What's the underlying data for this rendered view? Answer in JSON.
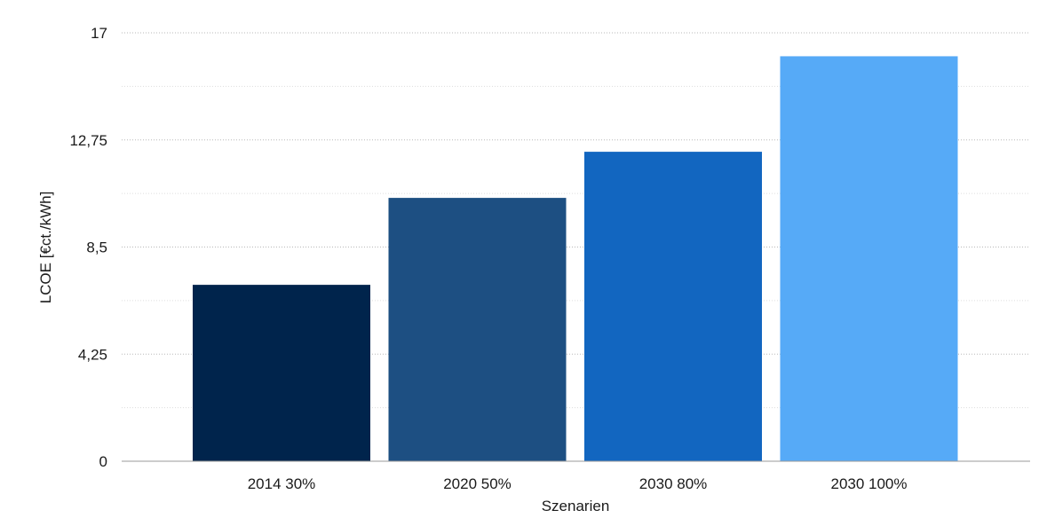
{
  "chart_data": {
    "type": "bar",
    "title": "",
    "xlabel": "Szenarien",
    "ylabel": "LCOE [€ct./kWh]",
    "categories": [
      "2014 30%",
      "2020 50%",
      "2030 80%",
      "2030 100%"
    ],
    "values": [
      7.0,
      10.45,
      12.28,
      16.07
    ],
    "colors": [
      "#00244c",
      "#1d4f82",
      "#1266c0",
      "#56aaf7"
    ],
    "ylim": [
      0,
      17
    ],
    "yticks": [
      0,
      4.25,
      8.5,
      12.75,
      17
    ],
    "ytick_labels": [
      "0",
      "4,25",
      "8,5",
      "12,75",
      "17"
    ],
    "grid": true,
    "legend": "none"
  }
}
